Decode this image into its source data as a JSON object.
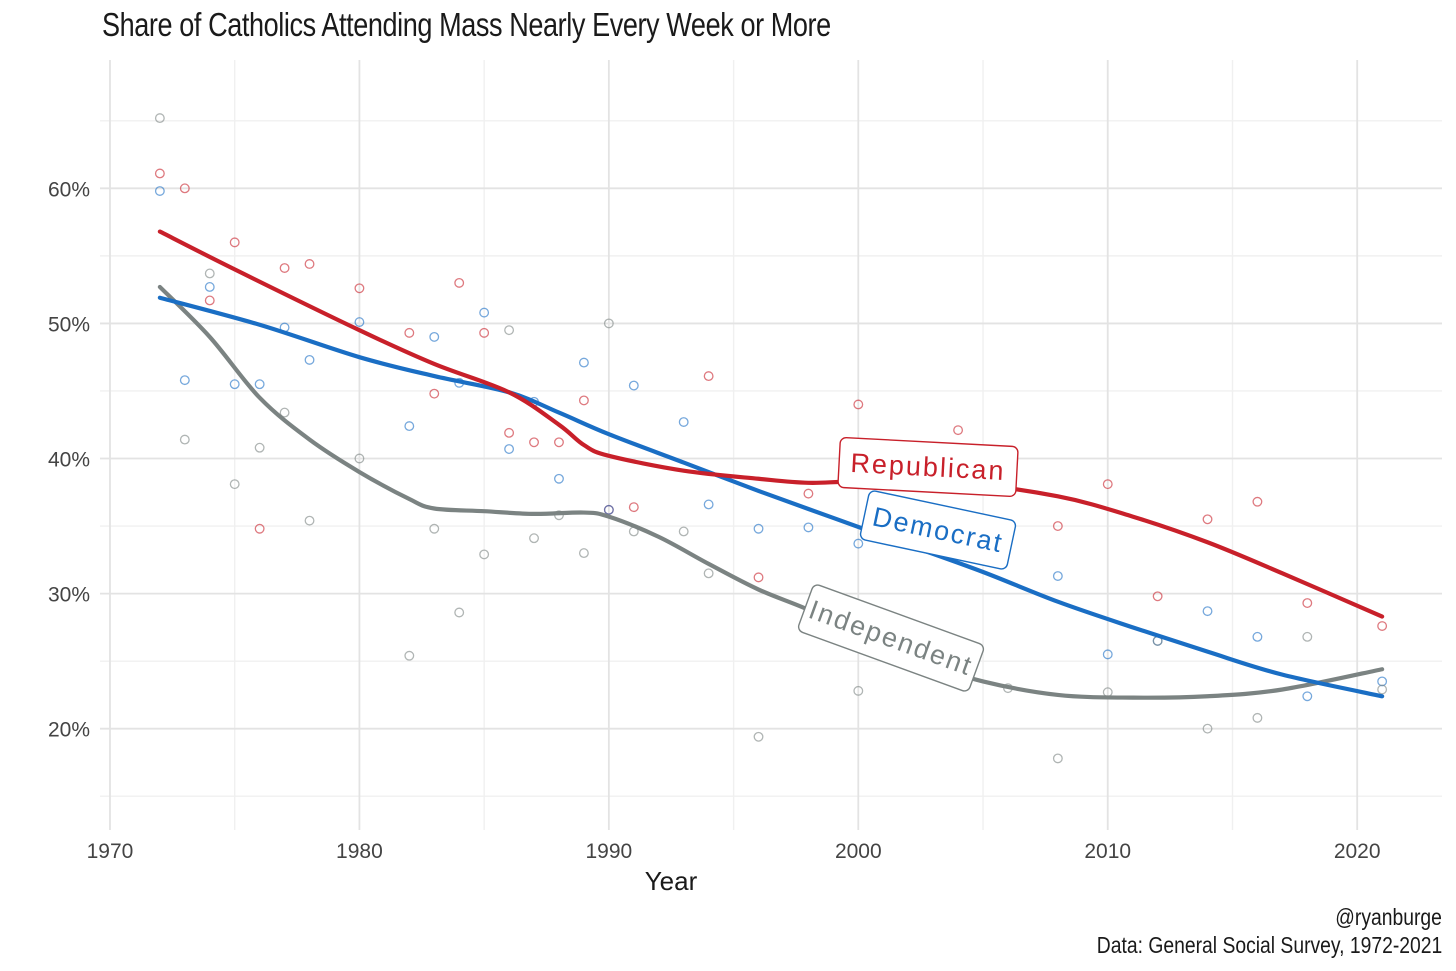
{
  "chart_data": {
    "type": "scatter",
    "title": "Share of Catholics Attending Mass Nearly Every Week or More",
    "xlabel": "Year",
    "ylabel": "",
    "xlim": [
      1969.6,
      2023.4
    ],
    "ylim": [
      0.125,
      0.695
    ],
    "x_ticks": [
      1970,
      1980,
      1990,
      2000,
      2010,
      2020
    ],
    "y_ticks": [
      0.2,
      0.3,
      0.4,
      0.5,
      0.6
    ],
    "y_tick_labels": [
      "20%",
      "30%",
      "40%",
      "50%",
      "60%"
    ],
    "grid": true,
    "legend": "direct labels on lines",
    "series": [
      {
        "name": "Republican",
        "color": "#c8202a",
        "points": [
          [
            1972,
            0.611
          ],
          [
            1973,
            0.6
          ],
          [
            1974,
            0.517
          ],
          [
            1975,
            0.56
          ],
          [
            1976,
            0.348
          ],
          [
            1977,
            0.541
          ],
          [
            1978,
            0.544
          ],
          [
            1980,
            0.526
          ],
          [
            1982,
            0.493
          ],
          [
            1983,
            0.448
          ],
          [
            1984,
            0.53
          ],
          [
            1985,
            0.493
          ],
          [
            1986,
            0.419
          ],
          [
            1987,
            0.412
          ],
          [
            1988,
            0.412
          ],
          [
            1989,
            0.443
          ],
          [
            1990,
            0.362
          ],
          [
            1991,
            0.364
          ],
          [
            1994,
            0.461
          ],
          [
            1996,
            0.312
          ],
          [
            1998,
            0.374
          ],
          [
            2000,
            0.44
          ],
          [
            2004,
            0.421
          ],
          [
            2008,
            0.35
          ],
          [
            2010,
            0.381
          ],
          [
            2012,
            0.298
          ],
          [
            2014,
            0.355
          ],
          [
            2016,
            0.368
          ],
          [
            2018,
            0.293
          ],
          [
            2021,
            0.276
          ]
        ],
        "smooth": [
          [
            1972,
            0.568
          ],
          [
            1975,
            0.54
          ],
          [
            1980,
            0.495
          ],
          [
            1983,
            0.47
          ],
          [
            1986,
            0.449
          ],
          [
            1988,
            0.425
          ],
          [
            1989,
            0.41
          ],
          [
            1990,
            0.402
          ],
          [
            1993,
            0.391
          ],
          [
            1996,
            0.385
          ],
          [
            1998,
            0.382
          ],
          [
            2000,
            0.383
          ],
          [
            2004,
            0.382
          ],
          [
            2008,
            0.372
          ],
          [
            2011,
            0.357
          ],
          [
            2014,
            0.338
          ],
          [
            2017,
            0.315
          ],
          [
            2021,
            0.283
          ]
        ]
      },
      {
        "name": "Democrat",
        "color": "#1a6ec4",
        "points": [
          [
            1972,
            0.598
          ],
          [
            1973,
            0.458
          ],
          [
            1974,
            0.527
          ],
          [
            1975,
            0.455
          ],
          [
            1976,
            0.455
          ],
          [
            1977,
            0.497
          ],
          [
            1978,
            0.473
          ],
          [
            1980,
            0.501
          ],
          [
            1982,
            0.424
          ],
          [
            1983,
            0.49
          ],
          [
            1984,
            0.456
          ],
          [
            1985,
            0.508
          ],
          [
            1986,
            0.407
          ],
          [
            1987,
            0.442
          ],
          [
            1988,
            0.385
          ],
          [
            1989,
            0.471
          ],
          [
            1990,
            0.362
          ],
          [
            1991,
            0.454
          ],
          [
            1993,
            0.427
          ],
          [
            1994,
            0.366
          ],
          [
            1996,
            0.348
          ],
          [
            1998,
            0.349
          ],
          [
            2000,
            0.337
          ],
          [
            2008,
            0.313
          ],
          [
            2010,
            0.255
          ],
          [
            2012,
            0.265
          ],
          [
            2014,
            0.287
          ],
          [
            2016,
            0.268
          ],
          [
            2018,
            0.224
          ],
          [
            2021,
            0.235
          ]
        ],
        "smooth": [
          [
            1972,
            0.519
          ],
          [
            1976,
            0.499
          ],
          [
            1980,
            0.475
          ],
          [
            1983,
            0.461
          ],
          [
            1986,
            0.449
          ],
          [
            1988,
            0.434
          ],
          [
            1990,
            0.418
          ],
          [
            1993,
            0.397
          ],
          [
            1996,
            0.376
          ],
          [
            1999,
            0.356
          ],
          [
            2002,
            0.336
          ],
          [
            2005,
            0.316
          ],
          [
            2008,
            0.294
          ],
          [
            2011,
            0.275
          ],
          [
            2014,
            0.257
          ],
          [
            2017,
            0.24
          ],
          [
            2021,
            0.224
          ]
        ]
      },
      {
        "name": "Independent",
        "color": "#7b8382",
        "points": [
          [
            1972,
            0.652
          ],
          [
            1973,
            0.414
          ],
          [
            1974,
            0.537
          ],
          [
            1975,
            0.381
          ],
          [
            1976,
            0.408
          ],
          [
            1977,
            0.434
          ],
          [
            1978,
            0.354
          ],
          [
            1980,
            0.4
          ],
          [
            1982,
            0.254
          ],
          [
            1983,
            0.348
          ],
          [
            1984,
            0.286
          ],
          [
            1985,
            0.329
          ],
          [
            1986,
            0.495
          ],
          [
            1987,
            0.341
          ],
          [
            1988,
            0.358
          ],
          [
            1989,
            0.33
          ],
          [
            1990,
            0.5
          ],
          [
            1991,
            0.346
          ],
          [
            1993,
            0.346
          ],
          [
            1994,
            0.315
          ],
          [
            1996,
            0.194
          ],
          [
            2000,
            0.228
          ],
          [
            2006,
            0.23
          ],
          [
            2008,
            0.178
          ],
          [
            2010,
            0.227
          ],
          [
            2012,
            0.265
          ],
          [
            2014,
            0.2
          ],
          [
            2016,
            0.208
          ],
          [
            2018,
            0.268
          ],
          [
            2021,
            0.229
          ]
        ],
        "smooth": [
          [
            1972,
            0.527
          ],
          [
            1974,
            0.49
          ],
          [
            1976,
            0.445
          ],
          [
            1978,
            0.414
          ],
          [
            1980,
            0.39
          ],
          [
            1982,
            0.37
          ],
          [
            1983,
            0.363
          ],
          [
            1985,
            0.361
          ],
          [
            1987,
            0.359
          ],
          [
            1989,
            0.36
          ],
          [
            1990,
            0.357
          ],
          [
            1992,
            0.342
          ],
          [
            1994,
            0.322
          ],
          [
            1996,
            0.303
          ],
          [
            1998,
            0.288
          ],
          [
            2000,
            0.27
          ],
          [
            2002,
            0.252
          ],
          [
            2005,
            0.235
          ],
          [
            2008,
            0.225
          ],
          [
            2011,
            0.223
          ],
          [
            2014,
            0.224
          ],
          [
            2017,
            0.229
          ],
          [
            2021,
            0.244
          ]
        ]
      }
    ],
    "line_labels": [
      {
        "series": "Republican",
        "text": "Republican"
      },
      {
        "series": "Democrat",
        "text": "Democrat"
      },
      {
        "series": "Independent",
        "text": "Independent"
      }
    ]
  },
  "credits": {
    "handle": "@ryanburge",
    "source": "Data: General Social Survey, 1972-2021"
  }
}
